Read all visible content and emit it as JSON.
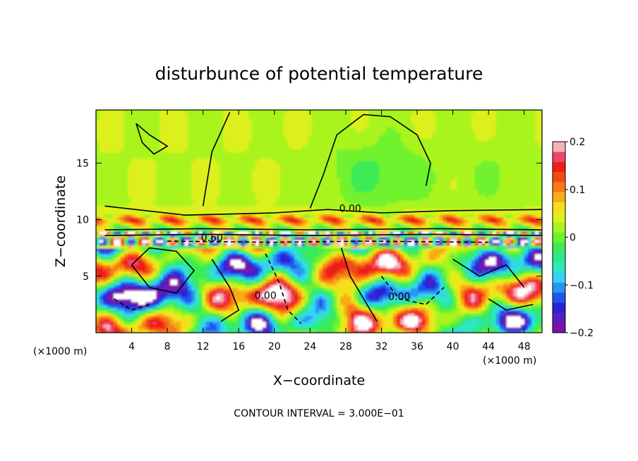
{
  "chart_data": {
    "type": "heatmap",
    "title": "disturbunce of potential temperature",
    "xlabel": "X−coordinate",
    "ylabel": "Z−coordinate",
    "x_unit": "(×1000 m)",
    "x_unit_right": "(×1000 m)",
    "footer": "CONTOUR INTERVAL = 3.000E−01",
    "xlim": [
      0,
      50
    ],
    "ylim": [
      0,
      19.7
    ],
    "x_ticks": [
      4,
      8,
      12,
      16,
      20,
      24,
      28,
      32,
      36,
      40,
      44,
      48
    ],
    "x_tick_labels": [
      "4",
      "8",
      "12",
      "16",
      "20",
      "24",
      "28",
      "32",
      "36",
      "40",
      "44",
      "48"
    ],
    "y_ticks": [
      5,
      10,
      15
    ],
    "y_tick_labels": [
      "5",
      "10",
      "15"
    ],
    "colorbar": {
      "range": [
        -0.2,
        0.2
      ],
      "tick_values": [
        0.2,
        0.1,
        0,
        -0.1,
        -0.2
      ],
      "tick_labels": [
        "0.2",
        "0.1",
        "0",
        "−0.1",
        "−0.2"
      ],
      "colors": [
        "#7a12a8",
        "#5a1ec0",
        "#2a22d8",
        "#1f55ee",
        "#2a94f2",
        "#34d2f2",
        "#2ee8c0",
        "#2ee68c",
        "#3cec54",
        "#6ff22e",
        "#a8f41e",
        "#dcf01e",
        "#f6de1a",
        "#f9ac16",
        "#f77a14",
        "#f44a12",
        "#ee1e16",
        "#f0446a",
        "#f7b0b6"
      ]
    },
    "contour_labels": [
      {
        "text": "0.00",
        "x": 19.0,
        "y": 3.0
      },
      {
        "text": "0.00",
        "x": 28.5,
        "y": 10.7
      },
      {
        "text": "0.00",
        "x": 34.0,
        "y": 2.9
      },
      {
        "text": "0.60",
        "x": 13.0,
        "y": 8.1
      }
    ]
  }
}
